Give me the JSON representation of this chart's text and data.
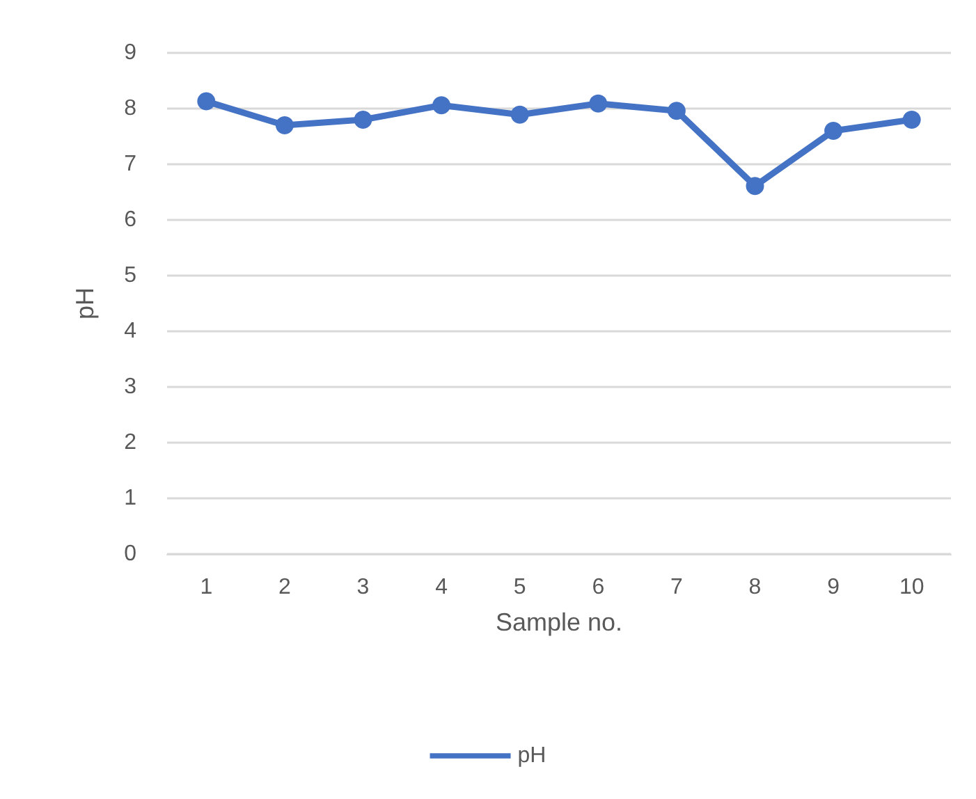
{
  "chart_data": {
    "type": "line",
    "xlabel": "Sample no.",
    "ylabel": "pH",
    "categories": [
      "1",
      "2",
      "3",
      "4",
      "5",
      "6",
      "7",
      "8",
      "9",
      "10"
    ],
    "series": [
      {
        "name": "pH",
        "color": "#4472c4",
        "values": [
          8.13,
          7.7,
          7.8,
          8.06,
          7.89,
          8.09,
          7.96,
          6.61,
          7.6,
          7.8
        ]
      }
    ],
    "ylim": [
      0,
      9
    ],
    "yticks": [
      0,
      1,
      2,
      3,
      4,
      5,
      6,
      7,
      8,
      9
    ],
    "grid": "y",
    "legend": "bottom",
    "marker": "circle",
    "line_style": "solid"
  }
}
